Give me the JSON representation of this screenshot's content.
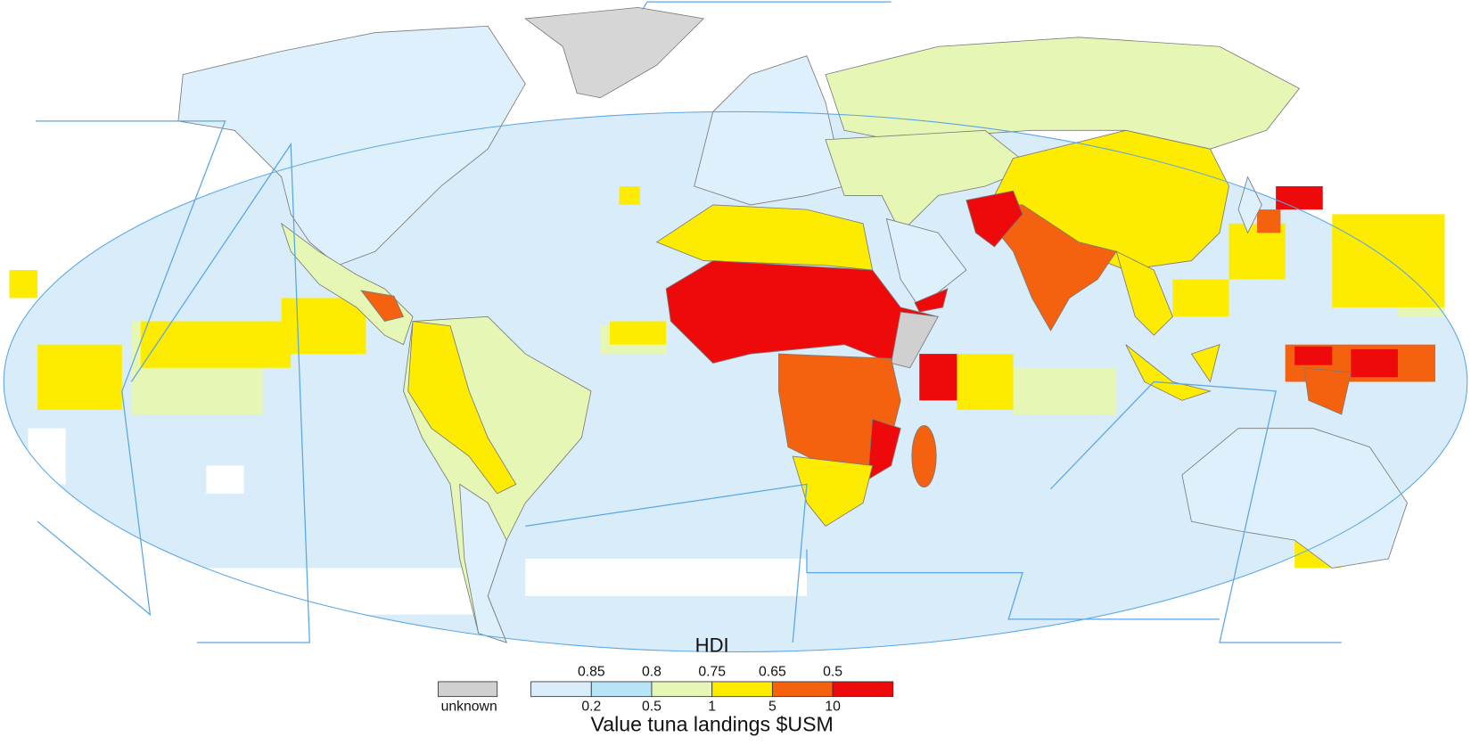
{
  "legend": {
    "title": "HDI",
    "hdi_labels": [
      "0.85",
      "0.8",
      "0.75",
      "0.65",
      "0.5"
    ],
    "value_labels": [
      "0.2",
      "0.5",
      "1",
      "5",
      "10"
    ],
    "colors": [
      "#d9eefa",
      "#b8e4f7",
      "#e6f6b4",
      "#fdec00",
      "#f4610f",
      "#ee0a0a"
    ],
    "unknown": {
      "label": "unknown",
      "color": "#d0d0d0"
    },
    "axis_title": "Value tuna landings $USM"
  }
}
